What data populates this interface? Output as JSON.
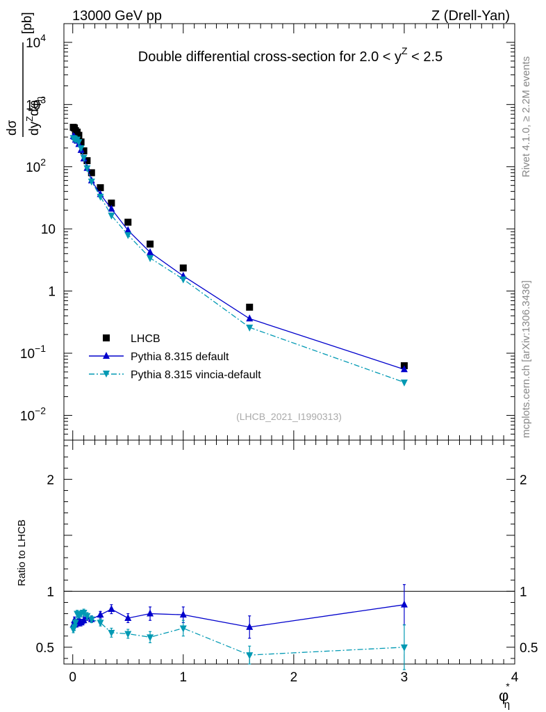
{
  "header": {
    "left": "13000 GeV pp",
    "right": "Z (Drell-Yan)"
  },
  "side_labels": {
    "rivet": "Rivet 4.1.0, ≥ 2.2M events",
    "mcplots": "mcplots.cern.ch [arXiv:1306.3436]"
  },
  "chart_data": [
    {
      "type": "scatter",
      "panel": "main",
      "title": "Double differential cross-section for 2.0 < y^Z < 2.5",
      "title_parts": {
        "prefix": "Double differential cross-section for 2.0 < ",
        "var": "y",
        "sup": "Z",
        "suffix": " < 2.5"
      },
      "ylabel": "d²σ / dy^Z dφ*_η [pb]",
      "ylabel_parts": {
        "pre": "dy",
        "sup": "Z",
        "mid": "dφ",
        "subsup": "*",
        "sub": "η",
        "unit": "[pb]",
        "num": "dσ"
      },
      "yscale": "log",
      "ylim": [
        0.004,
        20000
      ],
      "xlim": [
        -0.08,
        4.0
      ],
      "y_ticklabels": [
        {
          "v": 0.01,
          "base": "10",
          "exp": "−2"
        },
        {
          "v": 0.1,
          "base": "10",
          "exp": "−1"
        },
        {
          "v": 1,
          "base": "1",
          "exp": ""
        },
        {
          "v": 10,
          "base": "10",
          "exp": ""
        },
        {
          "v": 100,
          "base": "10",
          "exp": "2"
        },
        {
          "v": 1000,
          "base": "10",
          "exp": "3"
        },
        {
          "v": 10000,
          "base": "10",
          "exp": "4"
        }
      ],
      "watermark": "(LHCB_2021_I1990313)",
      "legend_position": "lower-left",
      "series": [
        {
          "name": "LHCB",
          "style": "data",
          "color": "#000000",
          "x": [
            0.005,
            0.015,
            0.025,
            0.04,
            0.055,
            0.075,
            0.1,
            0.13,
            0.17,
            0.25,
            0.35,
            0.5,
            0.7,
            1.0,
            1.6,
            3.0
          ],
          "y": [
            430,
            420,
            380,
            360,
            320,
            250,
            180,
            125,
            80,
            46,
            26,
            12.8,
            5.7,
            2.35,
            0.55,
            0.063
          ]
        },
        {
          "name": "Pythia 8.315 default",
          "style": "solid",
          "color": "#0000cc",
          "marker": "triangle-up",
          "x": [
            0.005,
            0.015,
            0.025,
            0.04,
            0.055,
            0.075,
            0.1,
            0.13,
            0.17,
            0.25,
            0.35,
            0.5,
            0.7,
            1.0,
            1.6,
            3.0
          ],
          "y": [
            310,
            300,
            270,
            260,
            230,
            185,
            135,
            95,
            60,
            36,
            21,
            9.5,
            4.2,
            1.75,
            0.36,
            0.055
          ]
        },
        {
          "name": "Pythia 8.315 vincia-default",
          "style": "dashdot",
          "color": "#0099b3",
          "marker": "triangle-down",
          "x": [
            0.005,
            0.015,
            0.025,
            0.04,
            0.055,
            0.075,
            0.1,
            0.13,
            0.17,
            0.25,
            0.35,
            0.5,
            0.7,
            1.0,
            1.6,
            3.0
          ],
          "y": [
            290,
            285,
            275,
            275,
            250,
            200,
            140,
            95,
            58,
            33,
            16.5,
            8.0,
            3.4,
            1.55,
            0.26,
            0.034
          ]
        }
      ]
    },
    {
      "type": "scatter",
      "panel": "ratio",
      "ylabel": "Ratio to LHCB",
      "xlabel_parts": {
        "var": "φ",
        "sup": "*",
        "sub": "η"
      },
      "xlim": [
        -0.08,
        4.0
      ],
      "ylim": [
        0.35,
        2.35
      ],
      "x_ticks": [
        0,
        1,
        2,
        3,
        4
      ],
      "x_ticklabels": [
        "0",
        "1",
        "2",
        "3",
        "4"
      ],
      "y_ticks": [
        0.5,
        1,
        2
      ],
      "y_ticklabels": [
        "0.5",
        "1",
        "2"
      ],
      "reference_line": 1,
      "series": [
        {
          "name": "Pythia 8.315 default",
          "style": "solid",
          "color": "#0000cc",
          "marker": "triangle-up",
          "x": [
            0.005,
            0.015,
            0.025,
            0.04,
            0.055,
            0.075,
            0.1,
            0.13,
            0.17,
            0.25,
            0.35,
            0.5,
            0.7,
            1.0,
            1.6,
            3.0
          ],
          "y": [
            0.7,
            0.74,
            0.72,
            0.71,
            0.75,
            0.72,
            0.74,
            0.77,
            0.75,
            0.79,
            0.84,
            0.76,
            0.8,
            0.79,
            0.68,
            0.88
          ],
          "err": [
            0.03,
            0.03,
            0.03,
            0.03,
            0.03,
            0.03,
            0.03,
            0.03,
            0.03,
            0.03,
            0.04,
            0.04,
            0.06,
            0.07,
            0.1,
            0.18
          ]
        },
        {
          "name": "Pythia 8.315 vincia-default",
          "style": "dashdot",
          "color": "#0099b3",
          "marker": "triangle-down",
          "x": [
            0.005,
            0.015,
            0.025,
            0.04,
            0.055,
            0.075,
            0.1,
            0.13,
            0.17,
            0.25,
            0.35,
            0.5,
            0.7,
            1.0,
            1.6,
            3.0
          ],
          "y": [
            0.66,
            0.68,
            0.72,
            0.8,
            0.79,
            0.8,
            0.81,
            0.78,
            0.75,
            0.72,
            0.63,
            0.62,
            0.59,
            0.67,
            0.43,
            0.5
          ],
          "err": [
            0.03,
            0.03,
            0.03,
            0.03,
            0.03,
            0.03,
            0.03,
            0.03,
            0.03,
            0.03,
            0.04,
            0.04,
            0.05,
            0.07,
            0.08,
            0.2
          ]
        }
      ]
    }
  ]
}
